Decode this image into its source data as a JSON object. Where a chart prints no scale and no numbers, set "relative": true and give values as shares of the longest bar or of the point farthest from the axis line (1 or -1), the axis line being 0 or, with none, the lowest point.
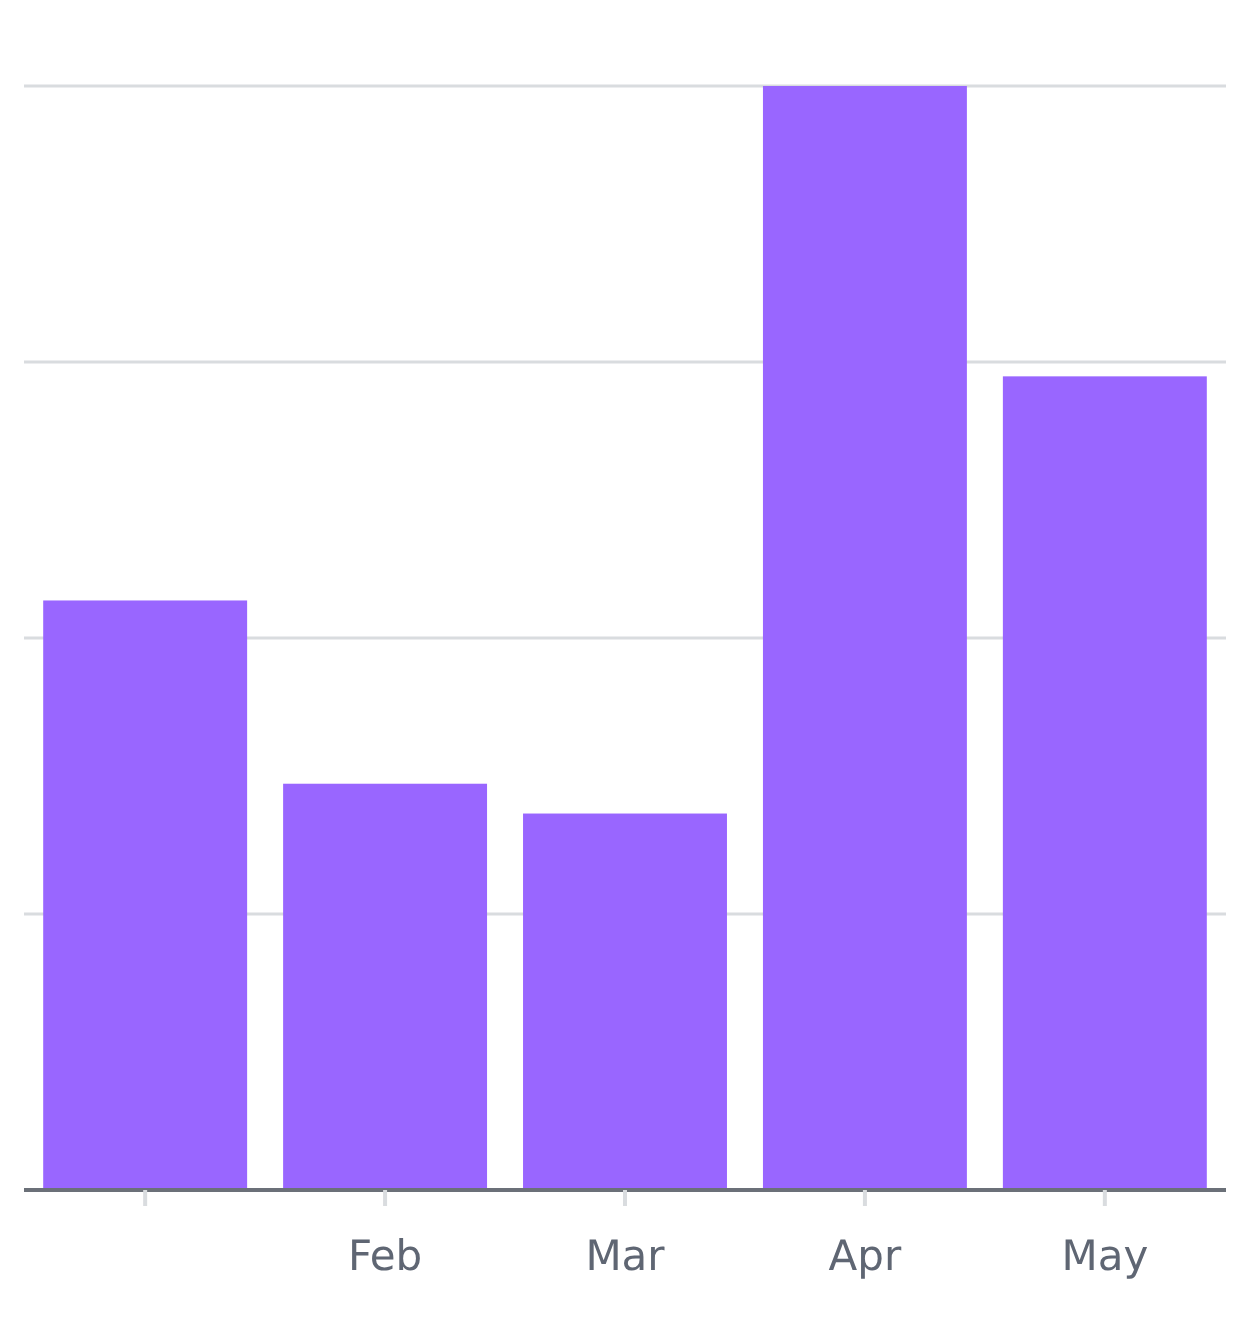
{
  "chart_data": {
    "type": "bar",
    "relative": true,
    "categories": [
      null,
      "Feb",
      "Mar",
      "Apr",
      "May"
    ],
    "values": [
      0.534,
      0.368,
      0.341,
      1,
      0.737
    ],
    "color": "#9966ff",
    "grid": "y"
  }
}
